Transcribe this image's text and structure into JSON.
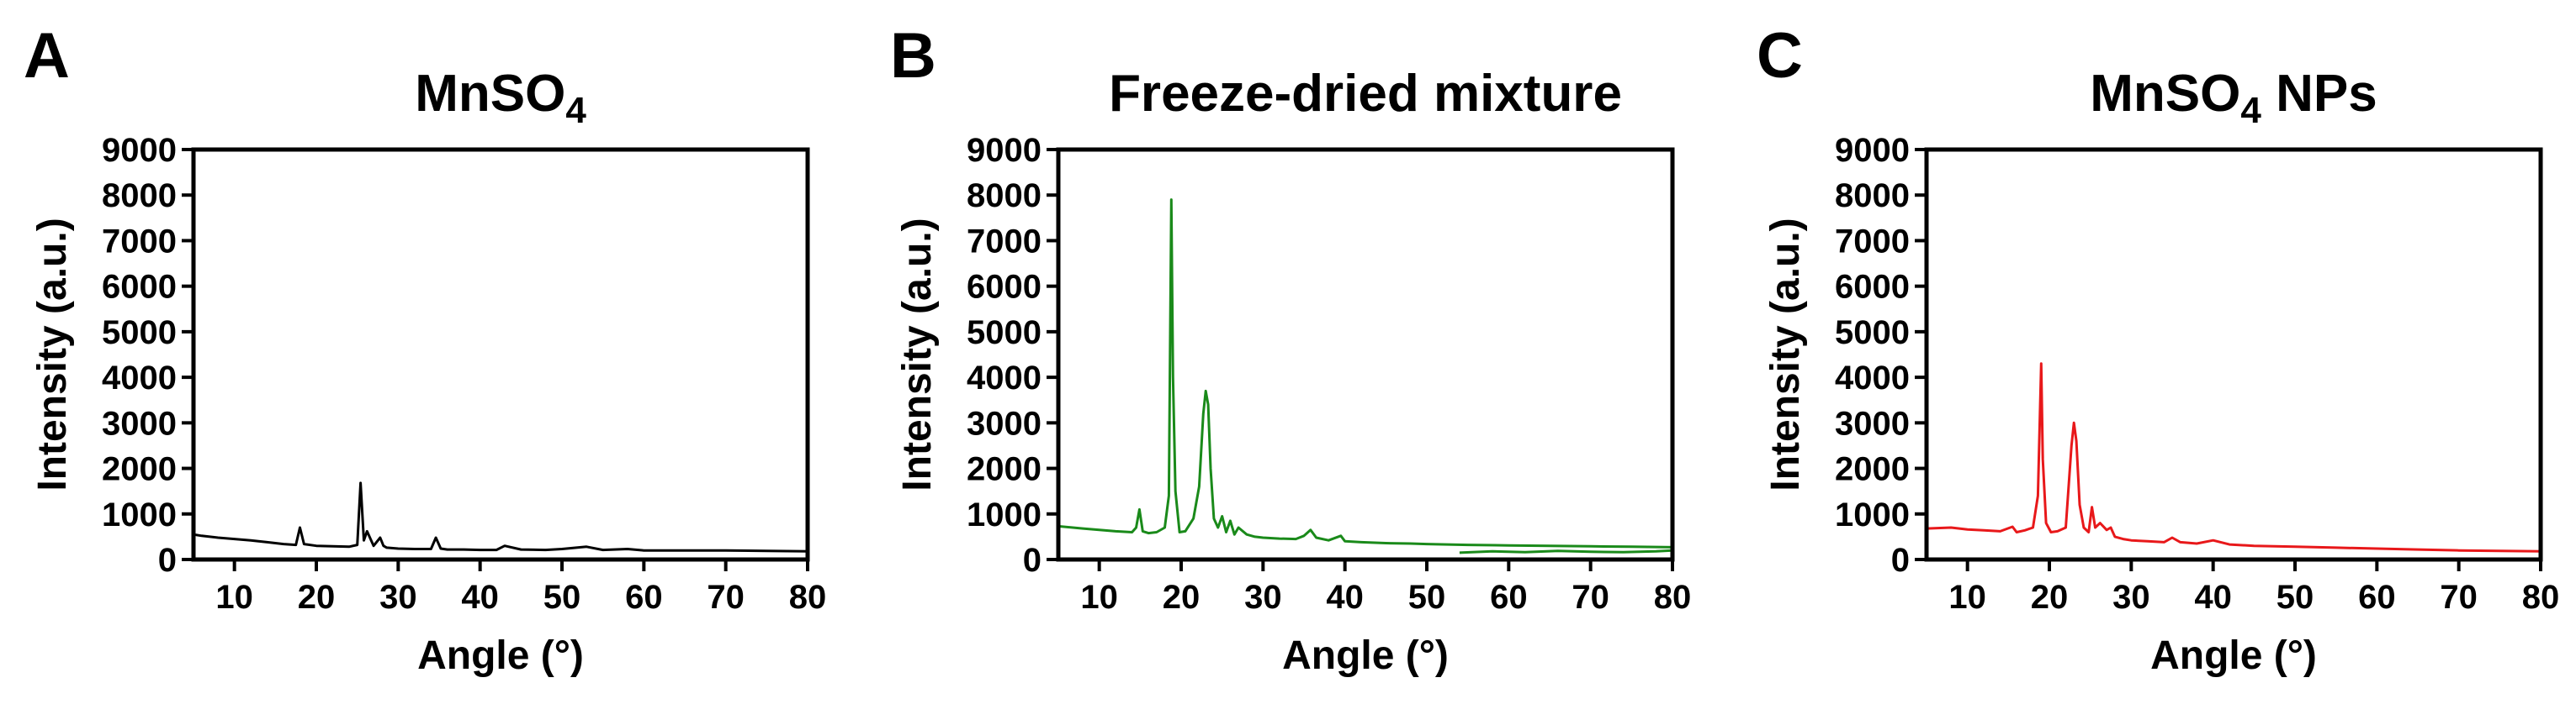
{
  "chart_data": [
    {
      "type": "line",
      "panel_label": "A",
      "title": "MnSO",
      "title_subscript": "4",
      "title_suffix": "",
      "xlabel": "Angle (°)",
      "ylabel": "Intensity (a.u.)",
      "xlim": [
        5,
        80
      ],
      "ylim": [
        0,
        9000
      ],
      "xticks": [
        10,
        20,
        30,
        40,
        50,
        60,
        70,
        80
      ],
      "yticks": [
        0,
        1000,
        2000,
        3000,
        4000,
        5000,
        6000,
        7000,
        8000,
        9000
      ],
      "grid": false,
      "color": "#000000",
      "series": [
        {
          "x": [
            5,
            6,
            8,
            10,
            12,
            14,
            16,
            17.5,
            18,
            18.5,
            20,
            22,
            24,
            25,
            25.4,
            25.8,
            26.2,
            27,
            27.8,
            28.2,
            28.6,
            30,
            32,
            34,
            34.6,
            35.2,
            36,
            38,
            40,
            42,
            43,
            45,
            48,
            50,
            53,
            55,
            58,
            60,
            65,
            70,
            75,
            80
          ],
          "y": [
            550,
            520,
            480,
            450,
            420,
            380,
            340,
            320,
            700,
            340,
            300,
            290,
            280,
            320,
            1680,
            420,
            620,
            300,
            480,
            300,
            260,
            240,
            230,
            230,
            480,
            240,
            220,
            220,
            210,
            210,
            300,
            220,
            210,
            230,
            280,
            210,
            230,
            200,
            200,
            200,
            190,
            180
          ]
        }
      ]
    },
    {
      "type": "line",
      "panel_label": "B",
      "title": "Freeze-dried mixture",
      "title_subscript": "",
      "title_suffix": "",
      "xlabel": "Angle (°)",
      "ylabel": "Intensity (a.u.)",
      "xlim": [
        5,
        80
      ],
      "ylim": [
        0,
        9000
      ],
      "xticks": [
        10,
        20,
        30,
        40,
        50,
        60,
        70,
        80
      ],
      "yticks": [
        0,
        1000,
        2000,
        3000,
        4000,
        5000,
        6000,
        7000,
        8000,
        9000
      ],
      "grid": false,
      "color": "#1a8a1a",
      "series": [
        {
          "x": [
            5,
            8,
            10,
            12,
            14,
            14.5,
            14.9,
            15.3,
            16,
            17,
            18,
            18.5,
            18.8,
            19.0,
            19.3,
            19.8,
            20.5,
            21.5,
            22.2,
            22.7,
            23.0,
            23.3,
            23.6,
            24.0,
            24.5,
            25,
            25.5,
            26,
            26.5,
            27,
            28,
            29,
            30,
            32,
            34,
            35,
            35.8,
            36.5,
            38,
            39.5,
            40,
            42,
            45,
            48,
            50,
            55,
            60,
            65,
            70,
            75,
            80
          ],
          "y": [
            730,
            680,
            650,
            620,
            600,
            700,
            1100,
            620,
            580,
            600,
            700,
            1400,
            7900,
            4000,
            1500,
            600,
            620,
            900,
            1600,
            3200,
            3700,
            3400,
            2000,
            900,
            700,
            950,
            600,
            850,
            550,
            700,
            550,
            500,
            480,
            460,
            450,
            520,
            650,
            480,
            420,
            520,
            400,
            380,
            360,
            350,
            340,
            320,
            310,
            300,
            290,
            280,
            270
          ]
        },
        {
          "x": [
            54,
            58,
            62,
            66,
            70,
            74,
            78,
            80
          ],
          "y": [
            150,
            180,
            160,
            190,
            170,
            160,
            180,
            200
          ]
        }
      ]
    },
    {
      "type": "line",
      "panel_label": "C",
      "title": "MnSO",
      "title_subscript": "4",
      "title_suffix": " NPs",
      "xlabel": "Angle (°)",
      "ylabel": "Intensity (a.u.)",
      "xlim": [
        5,
        80
      ],
      "ylim": [
        0,
        9000
      ],
      "xticks": [
        10,
        20,
        30,
        40,
        50,
        60,
        70,
        80
      ],
      "yticks": [
        0,
        1000,
        2000,
        3000,
        4000,
        5000,
        6000,
        7000,
        8000,
        9000
      ],
      "grid": false,
      "color": "#e8181a",
      "series": [
        {
          "x": [
            5,
            8,
            10,
            12,
            14,
            15.5,
            16,
            17,
            18,
            18.6,
            19.0,
            19.2,
            19.6,
            20.2,
            21,
            22,
            22.7,
            23.0,
            23.3,
            23.7,
            24.2,
            24.8,
            25.2,
            25.6,
            26.2,
            27,
            27.5,
            28,
            29,
            30,
            32,
            34,
            35,
            36,
            38,
            40,
            42,
            45,
            50,
            55,
            60,
            65,
            70,
            75,
            80
          ],
          "y": [
            680,
            700,
            660,
            640,
            620,
            720,
            600,
            640,
            700,
            1400,
            4300,
            2200,
            800,
            600,
            620,
            700,
            2500,
            3000,
            2600,
            1200,
            700,
            600,
            1150,
            700,
            800,
            650,
            700,
            500,
            450,
            420,
            400,
            380,
            480,
            380,
            350,
            420,
            330,
            300,
            280,
            260,
            240,
            220,
            200,
            190,
            180
          ]
        }
      ]
    }
  ]
}
